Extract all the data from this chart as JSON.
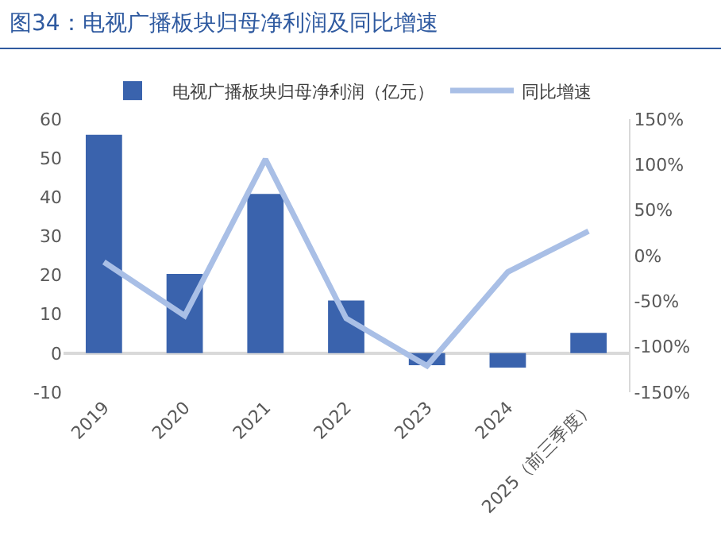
{
  "chart_data": {
    "type": "bar",
    "title": "图34：电视广播板块归母净利润及同比增速",
    "categories": [
      "2019",
      "2020",
      "2021",
      "2022",
      "2023",
      "2024",
      "2025（前三季度）"
    ],
    "series": [
      {
        "name": "电视广播板块归母净利润（亿元）",
        "color": "#3a63ad",
        "values": [
          56,
          20.3,
          40.8,
          13.5,
          -3.1,
          -3.7,
          5.2
        ]
      },
      {
        "name": "同比增速",
        "type": "line",
        "axis": "y2",
        "color": "#a9bfe6",
        "values": [
          -7,
          -66,
          106,
          -69,
          -121,
          -18,
          27
        ]
      }
    ],
    "ylim": [
      -10,
      60
    ],
    "yticks": [
      -10,
      0,
      10,
      20,
      30,
      40,
      50,
      60
    ],
    "y2lim": [
      -150,
      150
    ],
    "y2ticks": [
      {
        "value": -150,
        "label": "-150%"
      },
      {
        "value": -100,
        "label": "-100%"
      },
      {
        "value": -50,
        "label": "-50%"
      },
      {
        "value": 0,
        "label": "0%"
      },
      {
        "value": 50,
        "label": "50%"
      },
      {
        "value": 100,
        "label": "100%"
      },
      {
        "value": 150,
        "label": "150%"
      }
    ],
    "grid": false,
    "legend": "top",
    "marker": "none"
  }
}
